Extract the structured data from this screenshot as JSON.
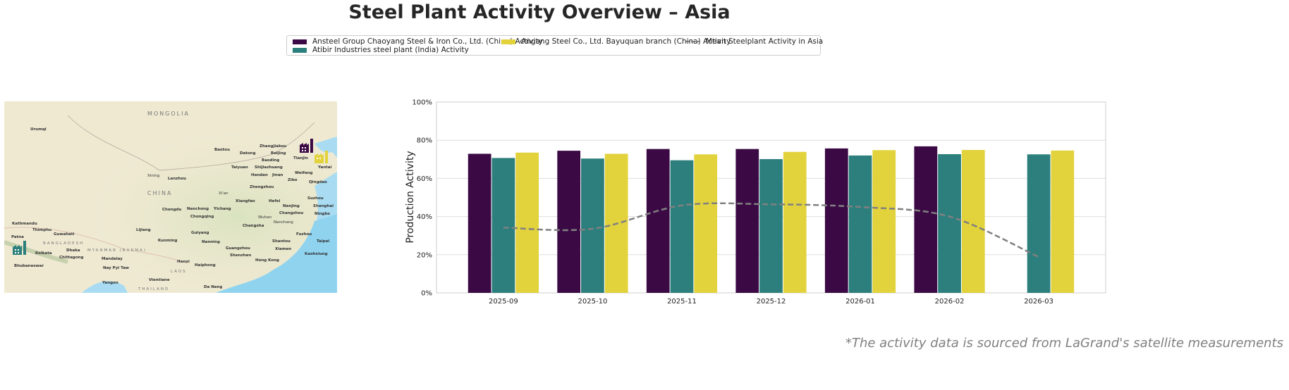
{
  "title": "Steel Plant Activity Overview – Asia",
  "footnote": "*The activity data is sourced from LaGrand's satellite measurements",
  "colors": {
    "ansteel": "#3b0a45",
    "atibir": "#2c7f7c",
    "angang": "#e2d23c",
    "mean": "#808080"
  },
  "map": {
    "icons": [
      "factory-icon-purple",
      "factory-icon-yellow",
      "factory-icon-teal"
    ],
    "labels": {
      "mongolia": "MONGOLIA",
      "china": "CHINA",
      "bangladesh": "BANGLADESH",
      "myanmar": "MYANMAR (BURMA)",
      "thailand": "THAILAND",
      "laos": "LAOS",
      "urumqi": "Urumqi",
      "baotou": "Baotou",
      "datong": "Datong",
      "zhangjiakou": "Zhangjiakou",
      "beijing": "Beijing",
      "tianjin": "Tianjin",
      "baoding": "Baoding",
      "taiyuan": "Taiyuan",
      "shijiazhuang": "Shijiazhuang",
      "handan": "Handan",
      "jinan": "Jinan",
      "zibo": "Zibo",
      "weifang": "Weifang",
      "qingdao": "Qingdao",
      "yantai": "Yantai",
      "lanzhou": "Lanzhou",
      "xining": "Xining",
      "zhengzhou": "Zhengzhou",
      "xian": "Xi'an",
      "xiangfan": "Xiangfan",
      "hefei": "Hefei",
      "nanjing": "Nanjing",
      "changzhou": "Changzhou",
      "shanghai": "Shanghai",
      "suzhou": "Suzhou",
      "wuhan": "Wuhan",
      "changsha": "Changsha",
      "nanchang": "Nanchang",
      "chengdu": "Chengdu",
      "chongqing": "Chongqing",
      "nanchong": "Nanchong",
      "yichang": "Yichang",
      "guiyang": "Guiyang",
      "kunming": "Kunming",
      "lijiang": "Lijiang",
      "fuzhou": "Fuzhou",
      "taipei": "Taipei",
      "kaohsiung": "Kaohsiung",
      "xiamen": "Xiamen",
      "guangzhou": "Guangzhou",
      "shenzhen": "Shenzhen",
      "hongkong": "Hong Kong",
      "nanning": "Nanning",
      "haiphong": "Haiphong",
      "hanoi": "Hanoi",
      "vientiane": "Vientiane",
      "danang": "Da Nang",
      "naypyitaw": "Nay Pyi Taw",
      "yangon": "Yangon",
      "mandalay": "Mandalay",
      "kathmandu": "Kathmandu",
      "thimphu": "Thimphu",
      "patna": "Patna",
      "guwahati": "Guwahati",
      "dhaka": "Dhaka",
      "kolkata": "Kolkata",
      "chittagong": "Chittagong",
      "bhubaneswar": "Bhubaneswar",
      "shantou": "Shantou",
      "ningbo": "Ningbo"
    }
  },
  "chart_data": {
    "type": "bar",
    "title": "Steel Plant Activity Overview – Asia",
    "xlabel": "",
    "ylabel": "Production Activity",
    "ylim": [
      0,
      100
    ],
    "yticks": [
      "0%",
      "20%",
      "40%",
      "60%",
      "80%",
      "100%"
    ],
    "grid": "horizontal",
    "legend_position": "top-center",
    "categories": [
      "2025-09",
      "2025-10",
      "2025-11",
      "2025-12",
      "2026-01",
      "2026-02",
      "2026-03"
    ],
    "series": [
      {
        "name": "Ansteel Group Chaoyang Steel & Iron Co., Ltd. (China) Activity",
        "type": "bar",
        "color": "#3b0a45",
        "values": [
          72.9,
          74.5,
          75.4,
          75.4,
          75.7,
          76.8,
          null
        ]
      },
      {
        "name": "Atibir Industries steel plant (India) Activity",
        "type": "bar",
        "color": "#2c7f7c",
        "values": [
          70.7,
          70.4,
          69.5,
          70.1,
          72.0,
          72.7,
          72.6
        ]
      },
      {
        "name": "Angang Steel Co., Ltd. Bayuquan branch (China) Activity",
        "type": "bar",
        "color": "#e2d23c",
        "values": [
          73.5,
          72.9,
          72.6,
          73.9,
          74.8,
          74.9,
          74.6
        ]
      },
      {
        "name": "Mean Steelplant Activity in Asia",
        "type": "line",
        "style": "dashed",
        "color": "#808080",
        "values": [
          34.2,
          33.6,
          45.8,
          46.4,
          45.0,
          40.0,
          18.8
        ]
      }
    ]
  }
}
